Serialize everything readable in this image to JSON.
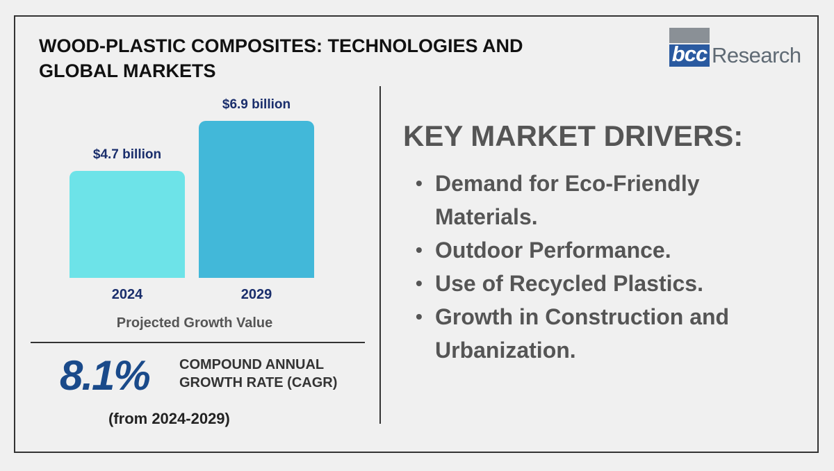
{
  "title": "WOOD-PLASTIC COMPOSITES: TECHNOLOGIES AND GLOBAL MARKETS",
  "logo": {
    "part1": "bcc",
    "part2": "Research"
  },
  "chart_data": {
    "type": "bar",
    "categories": [
      "2024",
      "2029"
    ],
    "values": [
      4.7,
      6.9
    ],
    "data_labels": [
      "$4.7 billion",
      "$6.9 billion"
    ],
    "colors": [
      "#6de3e8",
      "#42b8d9"
    ],
    "title": "",
    "xlabel": "Projected Growth Value",
    "ylabel": "",
    "ylim": [
      0,
      7.5
    ]
  },
  "cagr": {
    "value": "8.1%",
    "label_line1": "COMPOUND ANNUAL",
    "label_line2": "GROWTH RATE (CAGR)",
    "period": "(from 2024-2029)"
  },
  "drivers": {
    "title": "KEY MARKET DRIVERS:",
    "items": [
      "Demand for Eco-Friendly Materials.",
      "Outdoor Performance.",
      "Use of Recycled Plastics.",
      "Growth in Construction and Urbanization."
    ]
  }
}
